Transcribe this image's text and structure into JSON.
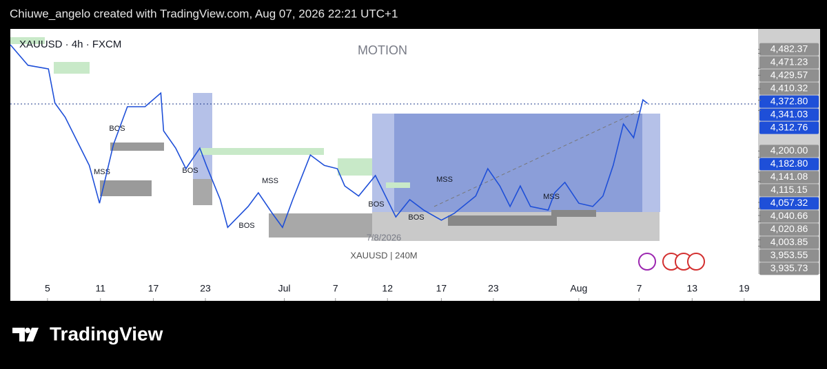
{
  "header": "Chiuwe_angelo created with TradingView.com, Aug 07, 2026 22:21 UTC+1",
  "chart_data": {
    "type": "line",
    "title": "XAUUSD · 4h · FXCM",
    "watermark": "MOTION",
    "footer_symbol": "XAUUSD | 240M",
    "date_label": "7/8/2026",
    "brand": "TradingView",
    "annotations": [
      "BOS",
      "MSS",
      "BOS",
      "MSS",
      "BOS",
      "BOS",
      "BOS",
      "MSS",
      "MSS"
    ],
    "x": [
      -4,
      -2.1,
      0.1,
      0.8,
      1.9,
      4.5,
      5.6,
      7.1,
      8.6,
      10.5,
      12.2,
      12.5,
      13.8,
      14.9,
      16.4,
      17.1,
      18.6,
      19.4,
      21.6,
      22.7,
      24.2,
      25.3,
      26.4,
      28.3,
      29.8,
      31.2,
      32,
      33.5,
      35.3,
      37.5,
      39,
      40.5,
      42.4,
      43.8,
      46.1,
      47.4,
      48.7,
      49.8,
      50.9,
      52,
      53.9,
      54.6,
      55.7,
      57.2,
      58.7,
      59.8,
      60.9,
      62,
      63.1,
      64.1,
      64.6
    ],
    "series": [
      {
        "name": "XAUUSD",
        "color": "#1e4fd8",
        "values": [
          4495,
          4438,
          4428,
          4333,
          4294,
          4160,
          4055,
          4218,
          4323,
          4323,
          4361,
          4256,
          4208,
          4151,
          4208,
          4160,
          4065,
          3988,
          4046,
          4084,
          4027,
          3988,
          4065,
          4189,
          4160,
          4151,
          4103,
          4075,
          4132,
          4017,
          4065,
          4036,
          4008,
          4027,
          4075,
          4151,
          4103,
          4046,
          4103,
          4046,
          4036,
          4084,
          4113,
          4055,
          4046,
          4075,
          4160,
          4275,
          4237,
          4342,
          4332
        ]
      }
    ],
    "xlim": [
      -4,
      76.5
    ],
    "xticks": [
      {
        "value": 0,
        "label": "5"
      },
      {
        "value": 5.7,
        "label": "11"
      },
      {
        "value": 11.4,
        "label": "17"
      },
      {
        "value": 17,
        "label": "23"
      },
      {
        "value": 25.5,
        "label": "Jul"
      },
      {
        "value": 31,
        "label": "7"
      },
      {
        "value": 36.6,
        "label": "12"
      },
      {
        "value": 42.4,
        "label": "17"
      },
      {
        "value": 48,
        "label": "23"
      },
      {
        "value": 57.2,
        "label": "Aug"
      },
      {
        "value": 63.7,
        "label": "7"
      },
      {
        "value": 69.4,
        "label": "13"
      },
      {
        "value": 75,
        "label": "19"
      }
    ],
    "ylim": [
      3784,
      4539
    ],
    "yticks": [
      {
        "value": 4482.37,
        "label": "4,482.37"
      },
      {
        "value": 4471.23,
        "label": "4,471.23"
      },
      {
        "value": 4429.57,
        "label": "4,429.57"
      },
      {
        "value": 4410.32,
        "label": "4,410.32"
      },
      {
        "value": 4372.8,
        "label": "4,372.80"
      },
      {
        "value": 4341.03,
        "label": "4,341.03"
      },
      {
        "value": 4312.76,
        "label": "4,312.76"
      },
      {
        "value": 4200,
        "label": "4,200.00"
      },
      {
        "value": 4182.8,
        "label": "4,182.80"
      },
      {
        "value": 4141.08,
        "label": "4,141.08"
      },
      {
        "value": 4115.15,
        "label": "4,115.15"
      },
      {
        "value": 4057.32,
        "label": "4,057.32"
      },
      {
        "value": 4040.66,
        "label": "4,040.66"
      },
      {
        "value": 4020.86,
        "label": "4,020.86"
      },
      {
        "value": 4003.85,
        "label": "4,003.85"
      },
      {
        "value": 3953.55,
        "label": "3,953.55"
      },
      {
        "value": 3935.73,
        "label": "3,935.73"
      }
    ]
  }
}
